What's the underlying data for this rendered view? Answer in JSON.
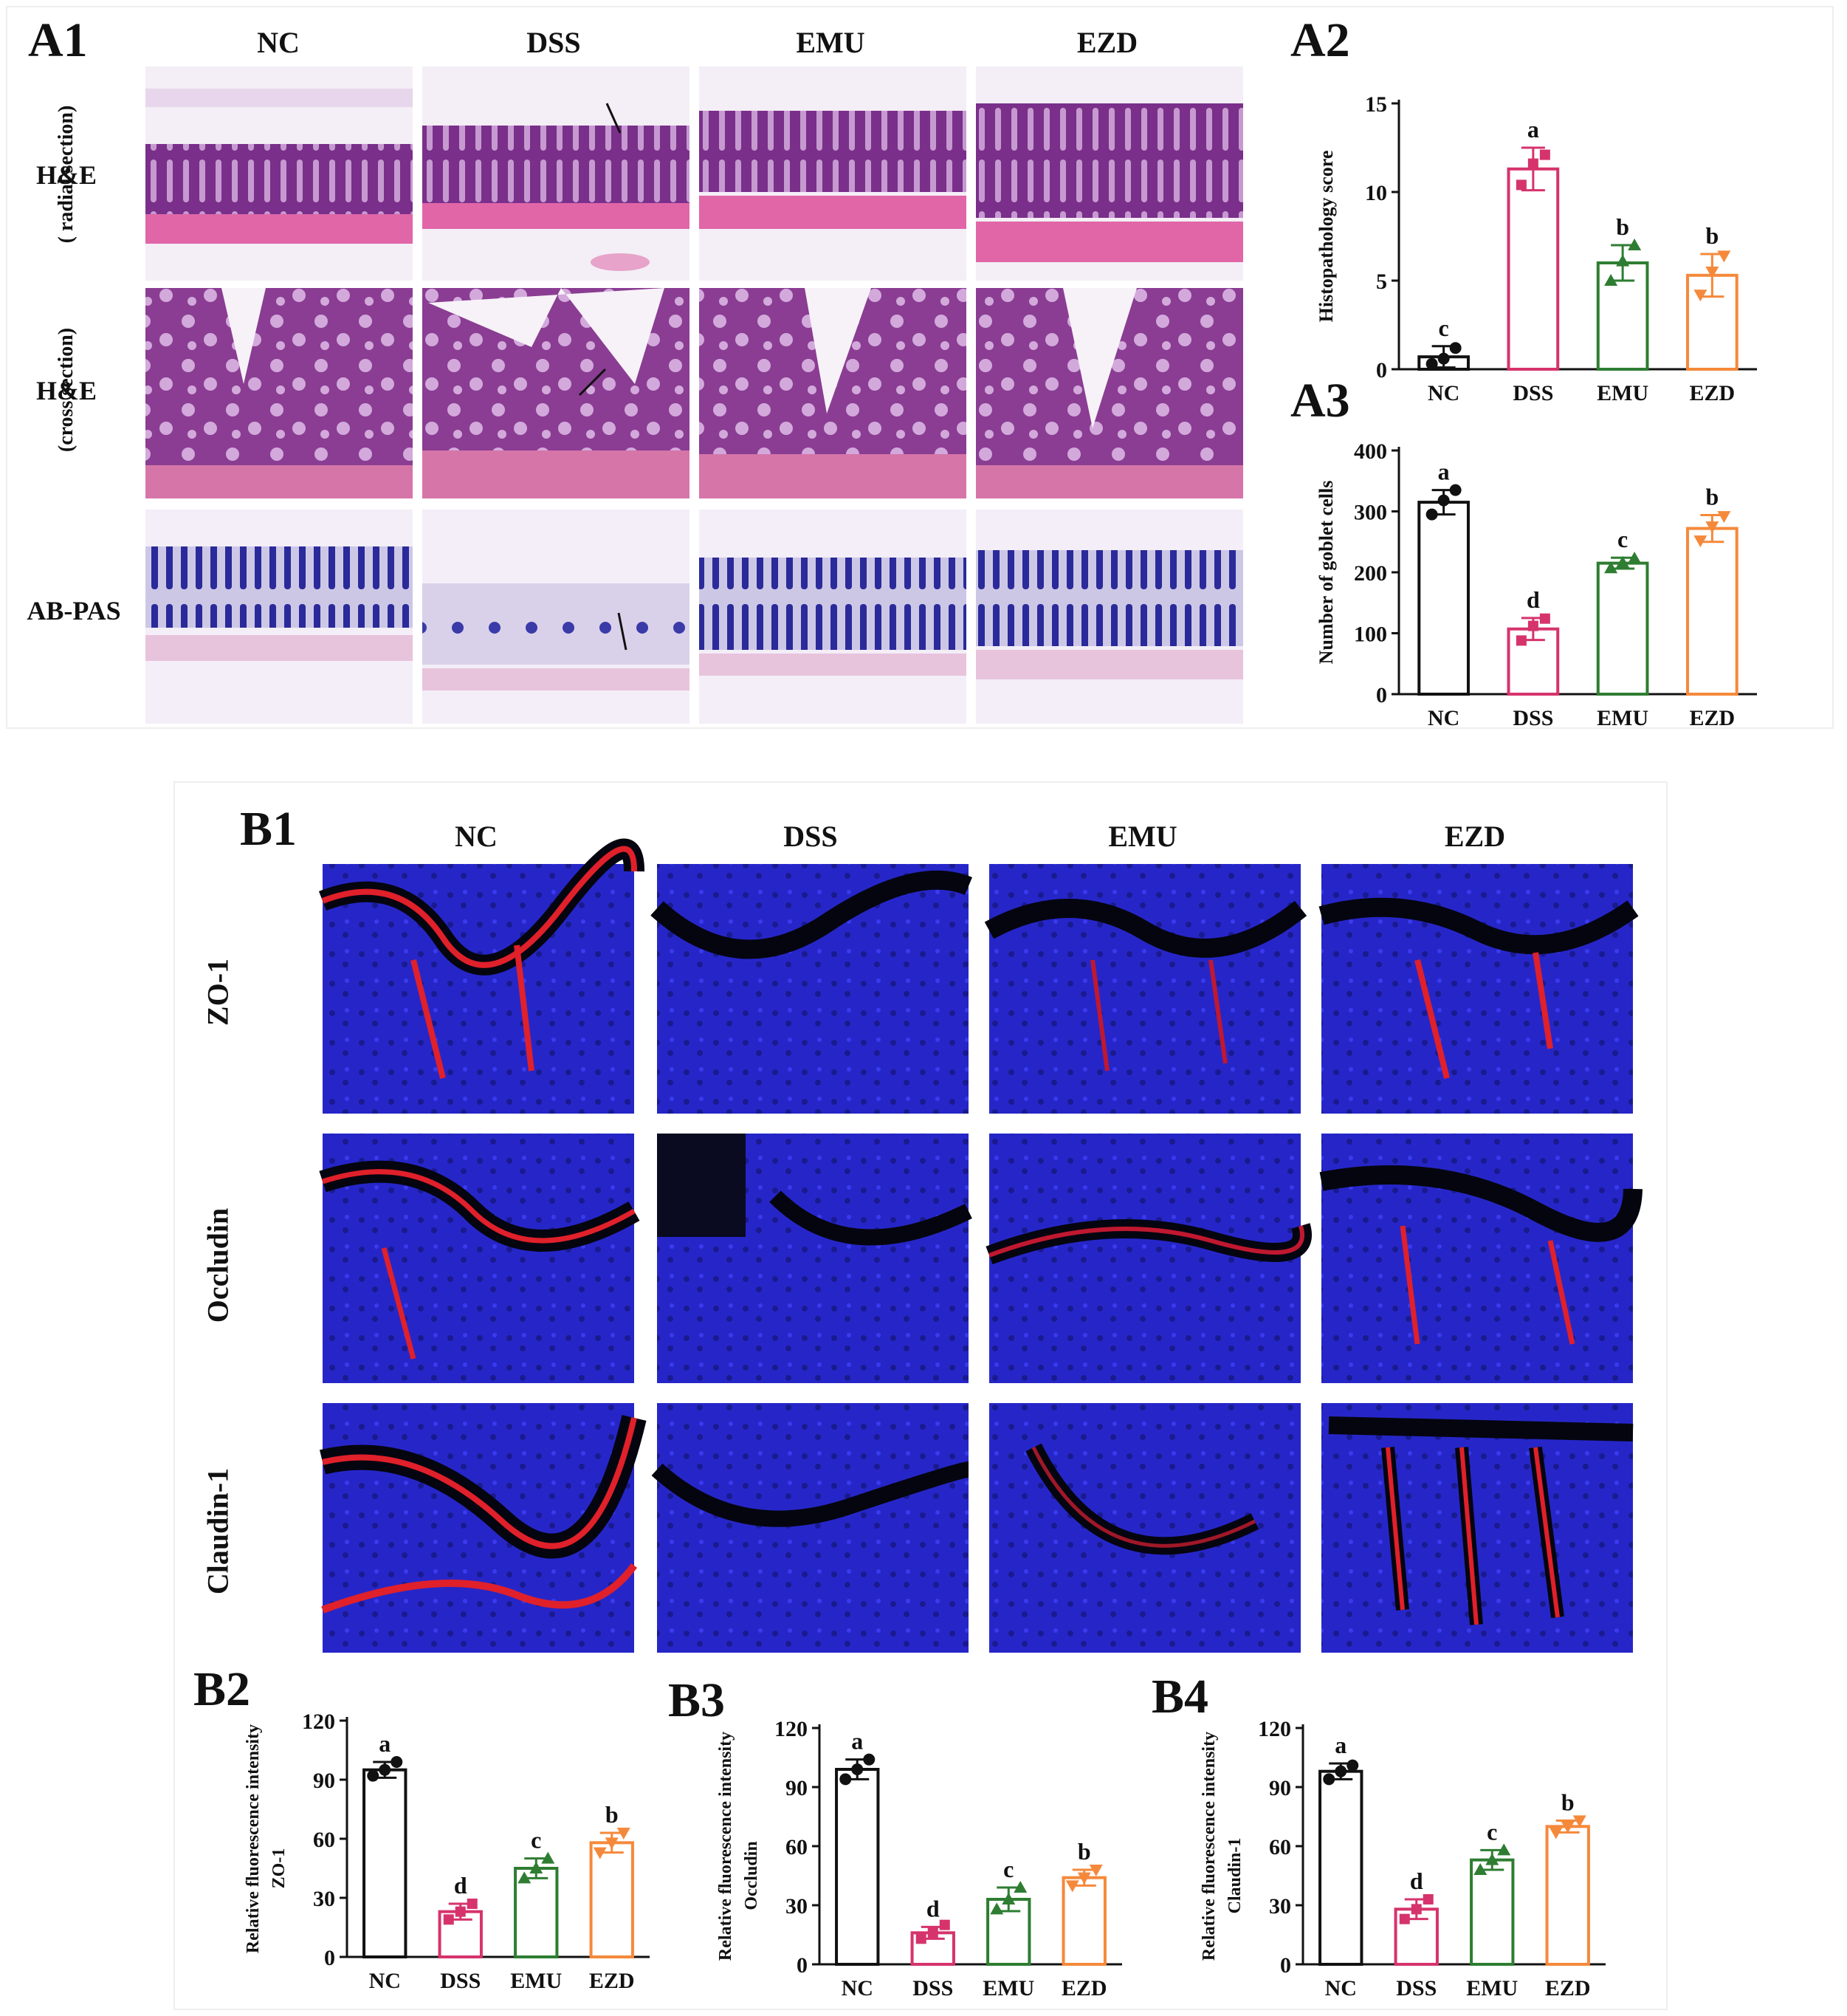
{
  "panels": {
    "A1": {
      "label": "A1",
      "columns": [
        "NC",
        "DSS",
        "EMU",
        "EZD"
      ],
      "rows": [
        {
          "label": "H&E",
          "sub": "( radial section)"
        },
        {
          "label": "H&E",
          "sub": "(cross section)"
        },
        {
          "label": "AB-PAS",
          "sub": ""
        }
      ]
    },
    "B1": {
      "label": "B1",
      "columns": [
        "NC",
        "DSS",
        "EMU",
        "EZD"
      ],
      "rows": [
        "ZO-1",
        "Occludin",
        "Claudin-1"
      ]
    }
  },
  "colors": {
    "NC": "#111111",
    "DSS": "#d6336c",
    "EMU": "#2e7d32",
    "EZD": "#f5893b",
    "he_stain": "#8e3b8f",
    "pas_stain": "#2a2a9a",
    "if_blue": "#2a2ae0",
    "if_red": "#e0202a"
  },
  "chart_data": [
    {
      "id": "A2",
      "label": "A2",
      "type": "bar",
      "categories": [
        "NC",
        "DSS",
        "EMU",
        "EZD"
      ],
      "values": [
        0.7,
        11.3,
        6.0,
        5.3
      ],
      "errors": [
        0.6,
        1.2,
        1.0,
        1.2
      ],
      "points": [
        [
          0.3,
          0.6,
          1.2
        ],
        [
          10.4,
          11.6,
          12.1
        ],
        [
          5.0,
          6.1,
          7.0
        ],
        [
          4.2,
          5.5,
          6.4
        ]
      ],
      "letters": [
        "c",
        "a",
        "b",
        "b"
      ],
      "ylabel": "Histopathology score",
      "ylim": [
        0,
        15
      ],
      "ticks": [
        0,
        5,
        10,
        15
      ]
    },
    {
      "id": "A3",
      "label": "A3",
      "type": "bar",
      "categories": [
        "NC",
        "DSS",
        "EMU",
        "EZD"
      ],
      "values": [
        315,
        107,
        215,
        272
      ],
      "errors": [
        20,
        18,
        9,
        22
      ],
      "points": [
        [
          295,
          318,
          335
        ],
        [
          88,
          112,
          124
        ],
        [
          207,
          216,
          223
        ],
        [
          252,
          275,
          292
        ]
      ],
      "letters": [
        "a",
        "d",
        "c",
        "b"
      ],
      "ylabel": "Number of  goblet cells",
      "ylim": [
        0,
        400
      ],
      "ticks": [
        0,
        100,
        200,
        300,
        400
      ]
    },
    {
      "id": "B2",
      "label": "B2",
      "type": "bar",
      "categories": [
        "NC",
        "DSS",
        "EMU",
        "EZD"
      ],
      "values": [
        95,
        23,
        45,
        58
      ],
      "errors": [
        4,
        4,
        5,
        5
      ],
      "points": [
        [
          92,
          95,
          99
        ],
        [
          19,
          23,
          27
        ],
        [
          40,
          45,
          50
        ],
        [
          53,
          58,
          63
        ]
      ],
      "letters": [
        "a",
        "d",
        "c",
        "b"
      ],
      "ylabel": "Relative fluorescence intensity",
      "ylabel2": "ZO-1",
      "ylim": [
        0,
        120
      ],
      "ticks": [
        0,
        30,
        60,
        90,
        120
      ]
    },
    {
      "id": "B3",
      "label": "B3",
      "type": "bar",
      "categories": [
        "NC",
        "DSS",
        "EMU",
        "EZD"
      ],
      "values": [
        99,
        16,
        33,
        44
      ],
      "errors": [
        5,
        3,
        6,
        4
      ],
      "points": [
        [
          94,
          99,
          104
        ],
        [
          13,
          16,
          20
        ],
        [
          28,
          33,
          39
        ],
        [
          40,
          44,
          48
        ]
      ],
      "letters": [
        "a",
        "d",
        "c",
        "b"
      ],
      "ylabel": "Relative fluorescence intensity",
      "ylabel2": "Occludin",
      "ylim": [
        0,
        120
      ],
      "ticks": [
        0,
        30,
        60,
        90,
        120
      ]
    },
    {
      "id": "B4",
      "label": "B4",
      "type": "bar",
      "categories": [
        "NC",
        "DSS",
        "EMU",
        "EZD"
      ],
      "values": [
        98,
        28,
        53,
        70
      ],
      "errors": [
        4,
        5,
        5,
        3
      ],
      "points": [
        [
          94,
          98,
          101
        ],
        [
          23,
          28,
          33
        ],
        [
          48,
          53,
          58
        ],
        [
          67,
          70,
          73
        ]
      ],
      "letters": [
        "a",
        "d",
        "c",
        "b"
      ],
      "ylabel": "Relative fluorescence intensity",
      "ylabel2": "Claudin-1",
      "ylim": [
        0,
        120
      ],
      "ticks": [
        0,
        30,
        60,
        90,
        120
      ]
    }
  ]
}
